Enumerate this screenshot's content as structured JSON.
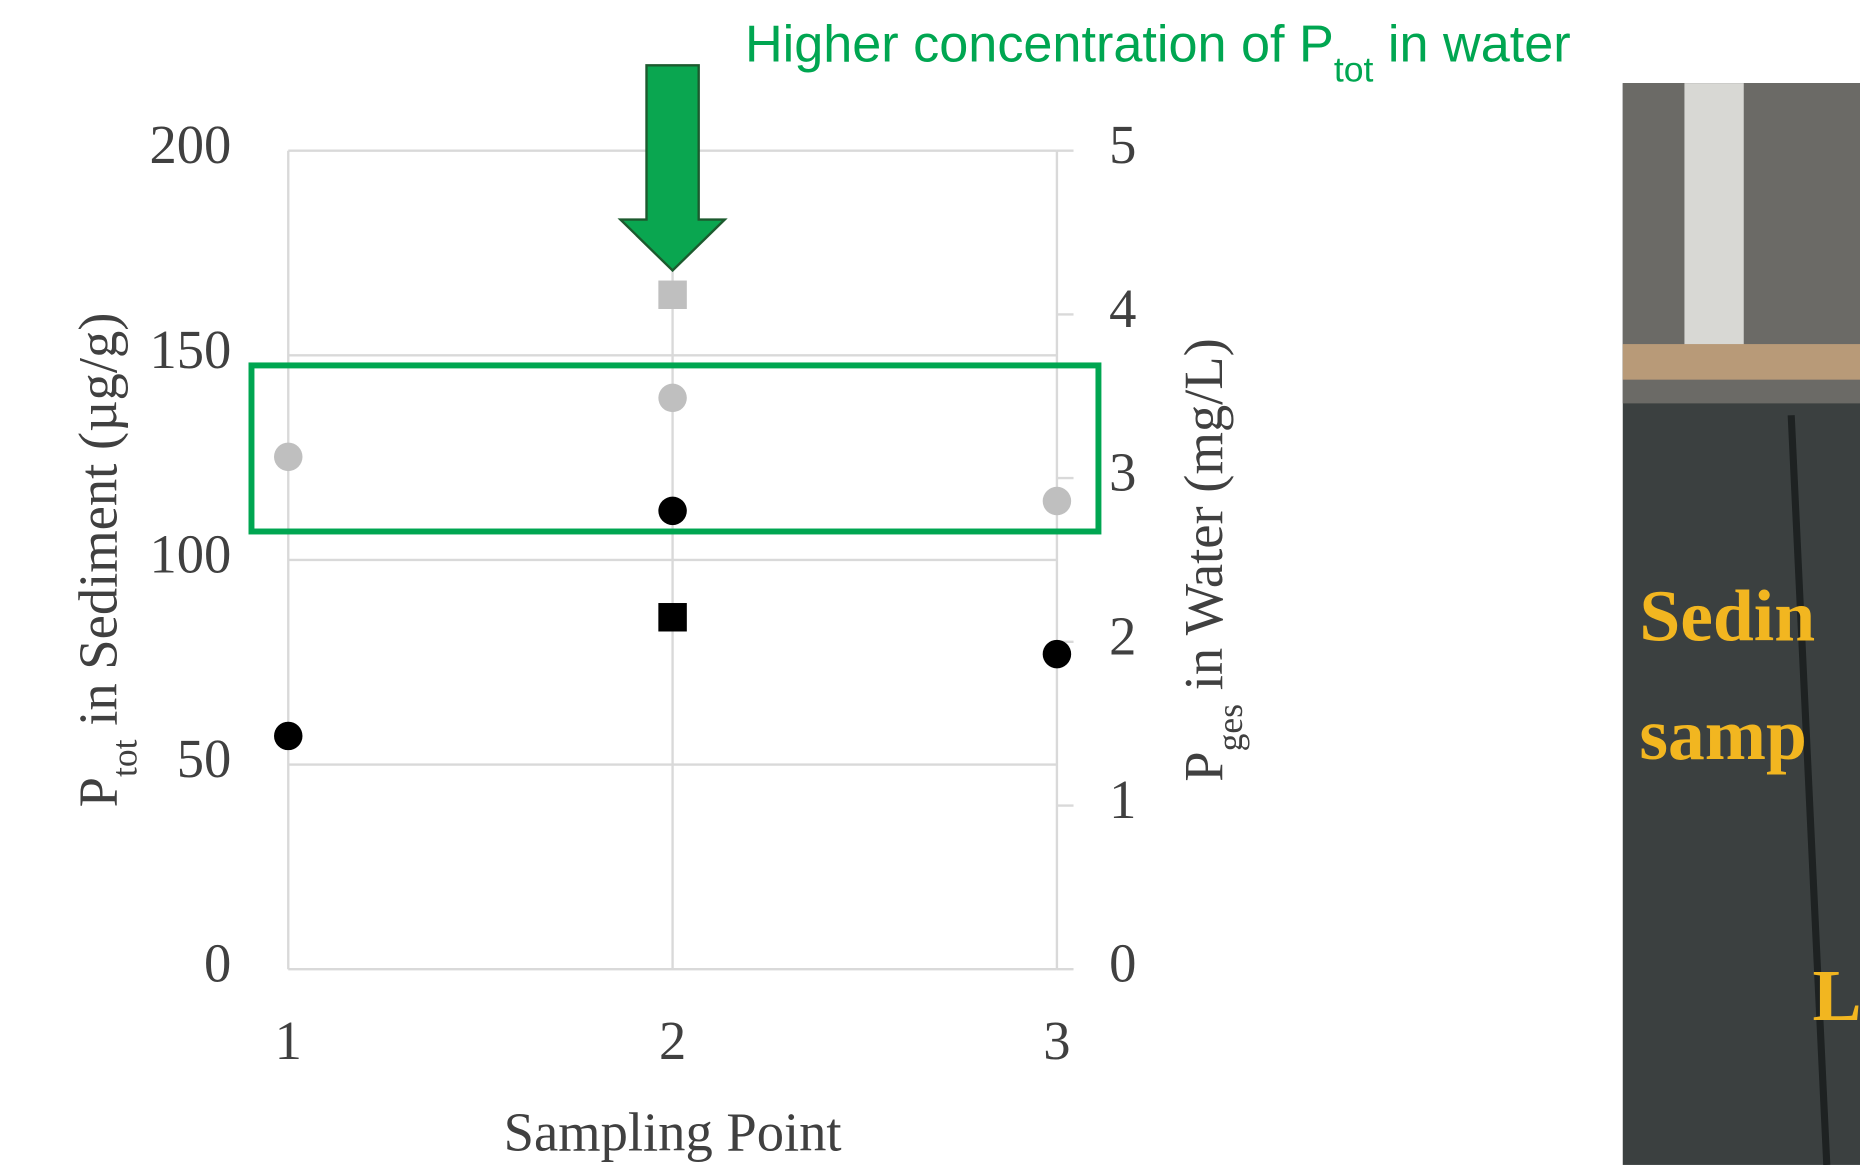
{
  "chart_data": {
    "type": "scatter",
    "annotation": [
      "Higher concentration of P",
      "tot",
      " in water"
    ],
    "x_label": "Sampling Point",
    "y_label": [
      "P",
      "tot",
      " in Sediment (µg/g)"
    ],
    "y2_label": [
      "P",
      "ges",
      " in Water (mg/L)"
    ],
    "xlim": [
      1,
      3
    ],
    "xticks": [
      1,
      2,
      3
    ],
    "ylim": [
      0,
      200
    ],
    "yticks": [
      0,
      50,
      100,
      150,
      200
    ],
    "y2lim": [
      0,
      5
    ],
    "y2ticks": [
      0,
      1,
      2,
      3,
      4,
      5
    ],
    "grid": true,
    "series": [
      {
        "marker": "circle",
        "color": "#000000",
        "x": [
          1,
          2,
          3
        ],
        "values": [
          57,
          112,
          77
        ]
      },
      {
        "marker": "square",
        "color": "#000000",
        "x": [
          2
        ],
        "values": [
          86
        ]
      },
      {
        "marker": "circle",
        "color": "#bfbfbf",
        "axis": "y2",
        "x": [
          1,
          2,
          3
        ],
        "values": [
          3.13,
          3.49,
          2.86
        ]
      },
      {
        "marker": "square",
        "color": "#bfbfbf",
        "axis": "y2",
        "x": [
          2
        ],
        "values": [
          4.12
        ]
      }
    ]
  },
  "photo": {
    "labels": [
      "Sedin",
      "samp",
      "L"
    ]
  }
}
